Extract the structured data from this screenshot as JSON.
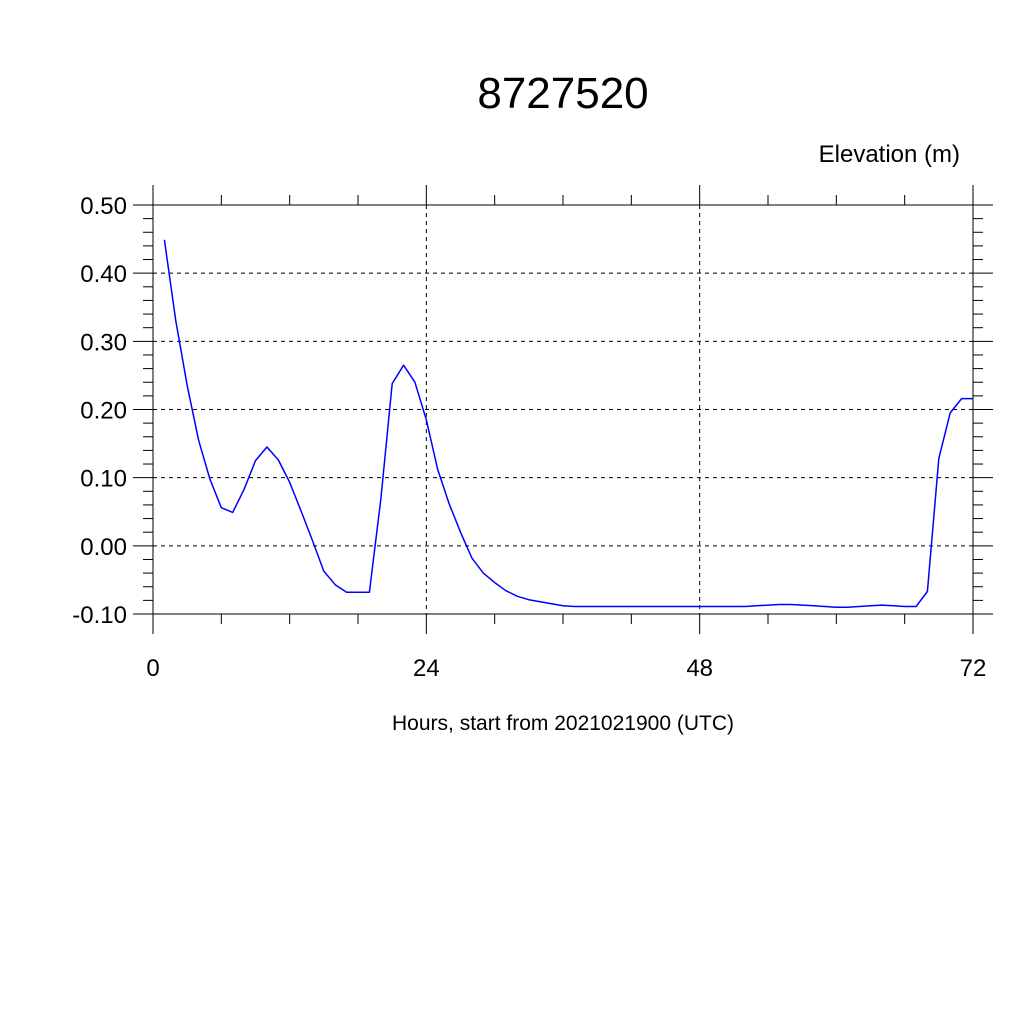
{
  "chart_data": {
    "type": "line",
    "title": "8727520",
    "xlabel": "Hours, start from 2021021900 (UTC)",
    "ylabel": "Elevation (m)",
    "xlim": [
      0,
      72
    ],
    "ylim": [
      -0.1,
      0.5
    ],
    "x_ticks": [
      0,
      24,
      48,
      72
    ],
    "x_tick_labels": [
      "0",
      "24",
      "48",
      "72"
    ],
    "y_ticks": [
      0.5,
      0.4,
      0.3,
      0.2,
      0.1,
      0.0,
      -0.1
    ],
    "y_tick_labels": [
      "0.50",
      "0.40",
      "0.30",
      "0.20",
      "0.10",
      "0.00",
      "-0.10"
    ],
    "grid": true,
    "series": [
      {
        "color": "#0000ff",
        "x": [
          1,
          2,
          3,
          4,
          5,
          6,
          7,
          8,
          9,
          10,
          11,
          12,
          13,
          14,
          15,
          16,
          17,
          18,
          19,
          20,
          21,
          22,
          23,
          24,
          25,
          26,
          27,
          28,
          29,
          30,
          31,
          32,
          33,
          34,
          35,
          36,
          37,
          38,
          39,
          40,
          41,
          42,
          43,
          44,
          45,
          46,
          47,
          48,
          49,
          50,
          51,
          52,
          53,
          54,
          55,
          56,
          57,
          58,
          59,
          60,
          61,
          62,
          63,
          64,
          65,
          66,
          67,
          68,
          69,
          70,
          71,
          72
        ],
        "y": [
          0.449,
          0.33,
          0.235,
          0.155,
          0.098,
          0.056,
          0.049,
          0.083,
          0.125,
          0.145,
          0.126,
          0.093,
          0.051,
          0.008,
          -0.037,
          -0.057,
          -0.068,
          -0.068,
          -0.068,
          0.068,
          0.238,
          0.265,
          0.24,
          0.185,
          0.112,
          0.062,
          0.02,
          -0.018,
          -0.04,
          -0.054,
          -0.066,
          -0.074,
          -0.079,
          -0.082,
          -0.085,
          -0.088,
          -0.089,
          -0.089,
          -0.089,
          -0.089,
          -0.089,
          -0.089,
          -0.089,
          -0.089,
          -0.089,
          -0.089,
          -0.089,
          -0.089,
          -0.089,
          -0.089,
          -0.089,
          -0.089,
          -0.088,
          -0.087,
          -0.086,
          -0.086,
          -0.087,
          -0.088,
          -0.089,
          -0.09,
          -0.09,
          -0.089,
          -0.088,
          -0.087,
          -0.088,
          -0.089,
          -0.089,
          -0.067,
          0.128,
          0.195,
          0.216,
          0.216
        ]
      }
    ]
  }
}
